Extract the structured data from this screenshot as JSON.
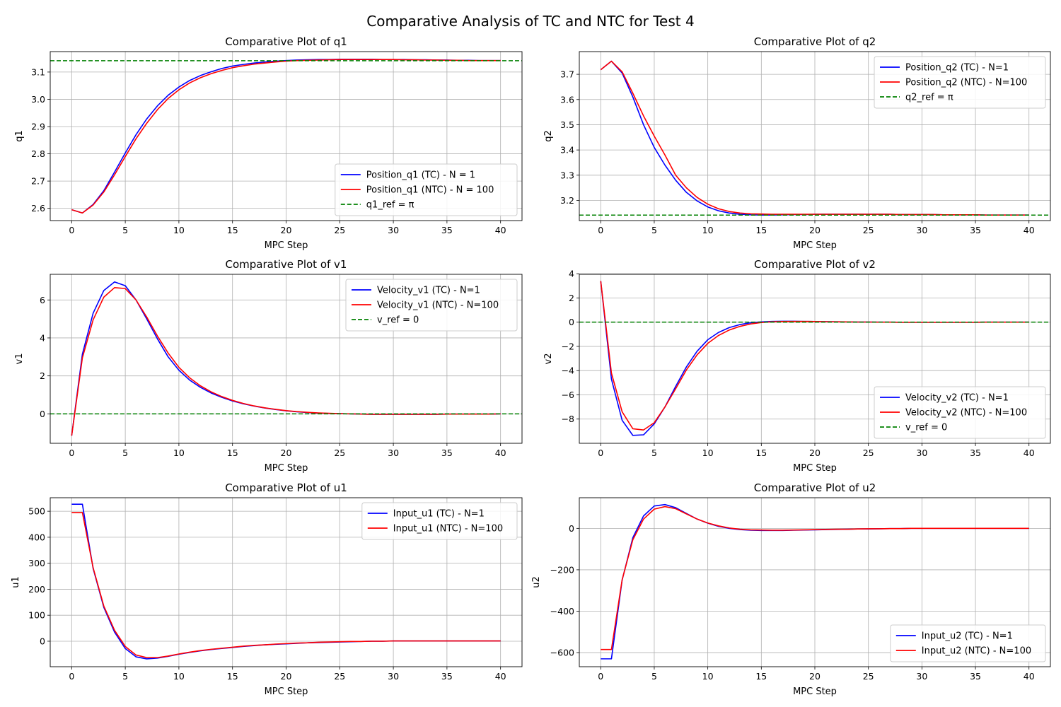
{
  "figure": {
    "title": "Comparative Analysis of TC and NTC for Test 4"
  },
  "colors": {
    "tc": "#0000ff",
    "ntc": "#ff0000",
    "ref": "#008000",
    "grid": "#b0b0b0",
    "axis": "#000000"
  },
  "chart_data": [
    {
      "id": "q1",
      "type": "line",
      "title": "Comparative Plot of q1",
      "xlabel": "MPC Step",
      "ylabel": "q1",
      "xlim": [
        -2,
        42
      ],
      "ylim": [
        2.555,
        3.175
      ],
      "xticks": [
        0,
        5,
        10,
        15,
        20,
        25,
        30,
        35,
        40
      ],
      "yticks": [
        2.6,
        2.7,
        2.8,
        2.9,
        3.0,
        3.1
      ],
      "ytick_labels": [
        "2.6",
        "2.7",
        "2.8",
        "2.9",
        "3.0",
        "3.1"
      ],
      "legend_loc": "lower-right",
      "x": [
        0,
        1,
        2,
        3,
        4,
        5,
        6,
        7,
        8,
        9,
        10,
        11,
        12,
        13,
        14,
        15,
        16,
        17,
        18,
        19,
        20,
        21,
        22,
        23,
        24,
        25,
        26,
        27,
        28,
        29,
        30,
        31,
        32,
        33,
        34,
        35,
        36,
        37,
        38,
        39,
        40
      ],
      "series": [
        {
          "name": "Position_q1 (TC) - N = 1",
          "style": "tc",
          "values": [
            2.595,
            2.583,
            2.614,
            2.665,
            2.733,
            2.803,
            2.87,
            2.928,
            2.976,
            3.015,
            3.045,
            3.069,
            3.087,
            3.101,
            3.113,
            3.122,
            3.128,
            3.133,
            3.137,
            3.14,
            3.142,
            3.144,
            3.145,
            3.146,
            3.146,
            3.147,
            3.147,
            3.147,
            3.147,
            3.146,
            3.146,
            3.146,
            3.145,
            3.145,
            3.144,
            3.144,
            3.143,
            3.143,
            3.142,
            3.142,
            3.142
          ]
        },
        {
          "name": "Position_q1 (NTC) - N = 100",
          "style": "ntc",
          "values": [
            2.595,
            2.583,
            2.612,
            2.66,
            2.723,
            2.79,
            2.855,
            2.912,
            2.962,
            3.003,
            3.035,
            3.06,
            3.079,
            3.094,
            3.106,
            3.116,
            3.123,
            3.129,
            3.133,
            3.137,
            3.14,
            3.142,
            3.143,
            3.144,
            3.145,
            3.146,
            3.146,
            3.146,
            3.146,
            3.146,
            3.146,
            3.145,
            3.145,
            3.144,
            3.144,
            3.143,
            3.143,
            3.142,
            3.142,
            3.142,
            3.142
          ]
        },
        {
          "name": "q1_ref = π",
          "style": "ref",
          "hline": 3.1416
        }
      ]
    },
    {
      "id": "q2",
      "type": "line",
      "title": "Comparative Plot of q2",
      "xlabel": "MPC Step",
      "ylabel": "q2",
      "xlim": [
        -2,
        42
      ],
      "ylim": [
        3.12,
        3.79
      ],
      "xticks": [
        0,
        5,
        10,
        15,
        20,
        25,
        30,
        35,
        40
      ],
      "yticks": [
        3.2,
        3.3,
        3.4,
        3.5,
        3.6,
        3.7
      ],
      "ytick_labels": [
        "3.2",
        "3.3",
        "3.4",
        "3.5",
        "3.6",
        "3.7"
      ],
      "legend_loc": "upper-right",
      "x": [
        0,
        1,
        2,
        3,
        4,
        5,
        6,
        7,
        8,
        9,
        10,
        11,
        12,
        13,
        14,
        15,
        16,
        17,
        18,
        19,
        20,
        21,
        22,
        23,
        24,
        25,
        26,
        27,
        28,
        29,
        30,
        31,
        32,
        33,
        34,
        35,
        36,
        37,
        38,
        39,
        40
      ],
      "series": [
        {
          "name": "Position_q2 (TC) - N=1",
          "style": "tc",
          "values": [
            3.718,
            3.752,
            3.705,
            3.61,
            3.5,
            3.41,
            3.34,
            3.28,
            3.232,
            3.198,
            3.174,
            3.159,
            3.15,
            3.145,
            3.143,
            3.142,
            3.142,
            3.143,
            3.144,
            3.144,
            3.145,
            3.145,
            3.145,
            3.145,
            3.145,
            3.145,
            3.145,
            3.145,
            3.144,
            3.144,
            3.144,
            3.144,
            3.143,
            3.143,
            3.143,
            3.143,
            3.142,
            3.142,
            3.142,
            3.142,
            3.142
          ]
        },
        {
          "name": "Position_q2 (NTC) - N=100",
          "style": "ntc",
          "values": [
            3.718,
            3.752,
            3.71,
            3.625,
            3.535,
            3.455,
            3.38,
            3.3,
            3.25,
            3.212,
            3.185,
            3.167,
            3.156,
            3.15,
            3.147,
            3.146,
            3.145,
            3.145,
            3.145,
            3.145,
            3.145,
            3.145,
            3.145,
            3.145,
            3.145,
            3.145,
            3.145,
            3.145,
            3.144,
            3.144,
            3.144,
            3.144,
            3.143,
            3.143,
            3.143,
            3.143,
            3.142,
            3.142,
            3.142,
            3.142,
            3.142
          ]
        },
        {
          "name": "q2_ref = π",
          "style": "ref",
          "hline": 3.1416
        }
      ]
    },
    {
      "id": "v1",
      "type": "line",
      "title": "Comparative Plot of v1",
      "xlabel": "MPC Step",
      "ylabel": "v1",
      "xlim": [
        -2,
        42
      ],
      "ylim": [
        -1.55,
        7.35
      ],
      "xticks": [
        0,
        5,
        10,
        15,
        20,
        25,
        30,
        35,
        40
      ],
      "yticks": [
        0,
        2,
        4,
        6
      ],
      "ytick_labels": [
        "0",
        "2",
        "4",
        "6"
      ],
      "legend_loc": "upper-right",
      "x": [
        0,
        1,
        2,
        3,
        4,
        5,
        6,
        7,
        8,
        9,
        10,
        11,
        12,
        13,
        14,
        15,
        16,
        17,
        18,
        19,
        20,
        21,
        22,
        23,
        24,
        25,
        26,
        27,
        28,
        29,
        30,
        31,
        32,
        33,
        34,
        35,
        36,
        37,
        38,
        39,
        40
      ],
      "series": [
        {
          "name": "Velocity_v1 (TC) - N=1",
          "style": "tc",
          "values": [
            -1.15,
            3.15,
            5.3,
            6.5,
            6.95,
            6.75,
            6.0,
            5.0,
            3.95,
            3.0,
            2.3,
            1.78,
            1.4,
            1.1,
            0.87,
            0.68,
            0.53,
            0.41,
            0.31,
            0.23,
            0.16,
            0.11,
            0.07,
            0.04,
            0.02,
            0.01,
            0.0,
            -0.01,
            -0.02,
            -0.02,
            -0.02,
            -0.02,
            -0.02,
            -0.02,
            -0.02,
            -0.01,
            -0.01,
            -0.01,
            -0.01,
            -0.01,
            0.0
          ]
        },
        {
          "name": "Velocity_v1 (NTC) - N=100",
          "style": "ntc",
          "values": [
            -1.15,
            2.95,
            4.95,
            6.15,
            6.65,
            6.6,
            6.0,
            5.1,
            4.1,
            3.2,
            2.45,
            1.9,
            1.48,
            1.16,
            0.91,
            0.71,
            0.55,
            0.42,
            0.32,
            0.24,
            0.17,
            0.12,
            0.08,
            0.05,
            0.03,
            0.01,
            0.0,
            -0.01,
            -0.02,
            -0.02,
            -0.02,
            -0.02,
            -0.02,
            -0.02,
            -0.02,
            -0.01,
            -0.01,
            -0.01,
            -0.01,
            -0.01,
            0.0
          ]
        },
        {
          "name": "v_ref = 0",
          "style": "ref",
          "hline": 0
        }
      ]
    },
    {
      "id": "v2",
      "type": "line",
      "title": "Comparative Plot of v2",
      "xlabel": "MPC Step",
      "ylabel": "v2",
      "xlim": [
        -2,
        42
      ],
      "ylim": [
        -10.0,
        3.95
      ],
      "xticks": [
        0,
        5,
        10,
        15,
        20,
        25,
        30,
        35,
        40
      ],
      "yticks": [
        -8,
        -6,
        -4,
        -2,
        0,
        2,
        4
      ],
      "ytick_labels": [
        "−8",
        "−6",
        "−4",
        "−2",
        "0",
        "2",
        "4"
      ],
      "legend_loc": "lower-right",
      "x": [
        0,
        1,
        2,
        3,
        4,
        5,
        6,
        7,
        8,
        9,
        10,
        11,
        12,
        13,
        14,
        15,
        16,
        17,
        18,
        19,
        20,
        21,
        22,
        23,
        24,
        25,
        26,
        27,
        28,
        29,
        30,
        31,
        32,
        33,
        34,
        35,
        36,
        37,
        38,
        39,
        40
      ],
      "series": [
        {
          "name": "Velocity_v2 (TC) - N=1",
          "style": "tc",
          "values": [
            3.4,
            -4.7,
            -8.1,
            -9.35,
            -9.3,
            -8.4,
            -7.0,
            -5.3,
            -3.7,
            -2.4,
            -1.45,
            -0.85,
            -0.45,
            -0.2,
            -0.05,
            0.02,
            0.06,
            0.07,
            0.07,
            0.06,
            0.05,
            0.04,
            0.03,
            0.02,
            0.01,
            0.01,
            0.0,
            0.0,
            -0.01,
            -0.01,
            -0.01,
            -0.01,
            -0.01,
            -0.01,
            -0.01,
            -0.01,
            0.0,
            0.0,
            0.0,
            0.0,
            0.0
          ]
        },
        {
          "name": "Velocity_v2 (NTC) - N=100",
          "style": "ntc",
          "values": [
            3.4,
            -4.2,
            -7.4,
            -8.8,
            -8.9,
            -8.3,
            -7.0,
            -5.5,
            -3.95,
            -2.7,
            -1.75,
            -1.1,
            -0.65,
            -0.35,
            -0.15,
            -0.03,
            0.03,
            0.05,
            0.06,
            0.06,
            0.05,
            0.04,
            0.03,
            0.02,
            0.01,
            0.01,
            0.0,
            0.0,
            -0.01,
            -0.01,
            -0.01,
            -0.01,
            -0.01,
            -0.01,
            -0.01,
            -0.01,
            0.0,
            0.0,
            0.0,
            0.0,
            0.0
          ]
        },
        {
          "name": "v_ref = 0",
          "style": "ref",
          "hline": 0
        }
      ]
    },
    {
      "id": "u1",
      "type": "line",
      "title": "Comparative Plot of u1",
      "xlabel": "MPC Step",
      "ylabel": "u1",
      "xlim": [
        -2,
        42
      ],
      "ylim": [
        -98,
        552
      ],
      "xticks": [
        0,
        5,
        10,
        15,
        20,
        25,
        30,
        35,
        40
      ],
      "yticks": [
        0,
        100,
        200,
        300,
        400,
        500
      ],
      "ytick_labels": [
        "0",
        "100",
        "200",
        "300",
        "400",
        "500"
      ],
      "legend_loc": "upper-right",
      "x": [
        0,
        1,
        2,
        3,
        4,
        5,
        6,
        7,
        8,
        9,
        10,
        11,
        12,
        13,
        14,
        15,
        16,
        17,
        18,
        19,
        20,
        21,
        22,
        23,
        24,
        25,
        26,
        27,
        28,
        29,
        30,
        31,
        32,
        33,
        34,
        35,
        36,
        37,
        38,
        39,
        40
      ],
      "series": [
        {
          "name": "Input_u1 (TC) - N=1",
          "style": "tc",
          "values": [
            527,
            527,
            280,
            130,
            35,
            -28,
            -60,
            -68,
            -65,
            -58,
            -50,
            -43,
            -37,
            -32,
            -28,
            -24,
            -20,
            -17,
            -14,
            -12,
            -10,
            -8,
            -6,
            -5,
            -4,
            -3,
            -2,
            -1,
            0,
            0,
            1,
            1,
            1,
            1,
            1,
            1,
            1,
            1,
            1,
            1,
            1
          ]
        },
        {
          "name": "Input_u1 (NTC) - N=100",
          "style": "ntc",
          "values": [
            495,
            495,
            283,
            135,
            42,
            -20,
            -53,
            -63,
            -63,
            -57,
            -49,
            -42,
            -36,
            -31,
            -27,
            -23,
            -19,
            -16,
            -14,
            -11,
            -9,
            -7,
            -6,
            -4,
            -3,
            -2,
            -1,
            -1,
            0,
            0,
            1,
            1,
            1,
            1,
            1,
            1,
            1,
            1,
            1,
            1,
            1
          ]
        }
      ]
    },
    {
      "id": "u2",
      "type": "line",
      "title": "Comparative Plot of u2",
      "xlabel": "MPC Step",
      "ylabel": "u2",
      "xlim": [
        -2,
        42
      ],
      "ylim": [
        -668,
        148
      ],
      "xticks": [
        0,
        5,
        10,
        15,
        20,
        25,
        30,
        35,
        40
      ],
      "yticks": [
        -600,
        -400,
        -200,
        0
      ],
      "ytick_labels": [
        "−600",
        "−400",
        "−200",
        "0"
      ],
      "legend_loc": "lower-right",
      "x": [
        0,
        1,
        2,
        3,
        4,
        5,
        6,
        7,
        8,
        9,
        10,
        11,
        12,
        13,
        14,
        15,
        16,
        17,
        18,
        19,
        20,
        21,
        22,
        23,
        24,
        25,
        26,
        27,
        28,
        29,
        30,
        31,
        32,
        33,
        34,
        35,
        36,
        37,
        38,
        39,
        40
      ],
      "series": [
        {
          "name": "Input_u2 (TC) - N=1",
          "style": "tc",
          "values": [
            -630,
            -630,
            -250,
            -45,
            60,
            108,
            115,
            100,
            72,
            45,
            25,
            10,
            0,
            -6,
            -9,
            -10,
            -10,
            -10,
            -9,
            -8,
            -7,
            -6,
            -5,
            -4,
            -3,
            -3,
            -2,
            -1,
            -1,
            0,
            0,
            0,
            0,
            0,
            0,
            0,
            0,
            0,
            0,
            0,
            0
          ]
        },
        {
          "name": "Input_u2 (NTC) - N=100",
          "style": "ntc",
          "values": [
            -585,
            -585,
            -248,
            -55,
            45,
            93,
            105,
            95,
            70,
            45,
            26,
            12,
            2,
            -4,
            -7,
            -8,
            -9,
            -9,
            -8,
            -7,
            -6,
            -5,
            -4,
            -4,
            -3,
            -2,
            -2,
            -1,
            -1,
            0,
            0,
            0,
            0,
            0,
            0,
            0,
            0,
            0,
            0,
            0,
            0
          ]
        }
      ]
    }
  ]
}
